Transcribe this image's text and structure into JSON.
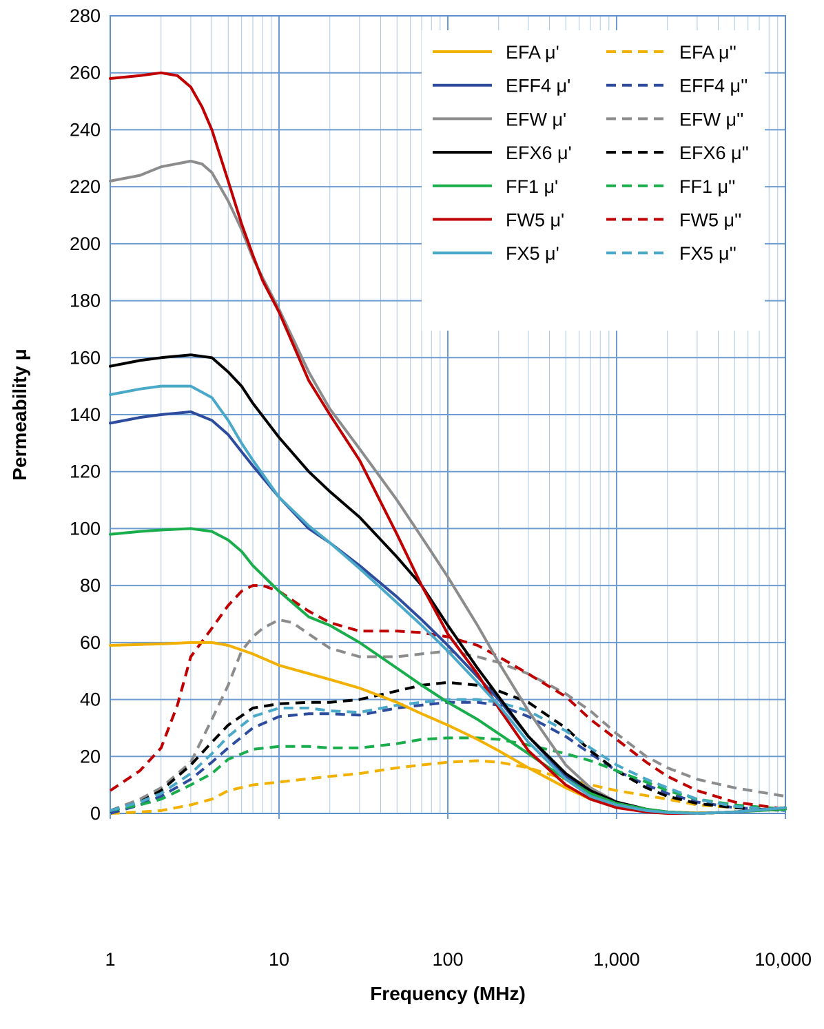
{
  "chart_data": {
    "type": "line",
    "title": "",
    "xlabel": "Frequency (MHz)",
    "ylabel": "Permeability  μ",
    "x_scale": "log",
    "xlim": [
      1,
      10000
    ],
    "ylim": [
      0,
      280
    ],
    "x_ticks": [
      1,
      10,
      100,
      1000,
      10000
    ],
    "x_tick_labels": [
      "1",
      "10",
      "100",
      "1,000",
      "10,000"
    ],
    "y_ticks": [
      0,
      20,
      40,
      60,
      80,
      100,
      120,
      140,
      160,
      180,
      200,
      220,
      240,
      260,
      280
    ],
    "y_tick_labels": [
      "0",
      "20",
      "40",
      "60",
      "80",
      "100",
      "120",
      "140",
      "160",
      "180",
      "200",
      "220",
      "240",
      "260",
      "280"
    ],
    "grid": true,
    "legend_position": "top-right",
    "series": [
      {
        "name": "EFA μ'",
        "color": "#f2b100",
        "style": "solid",
        "x": [
          1,
          2,
          3,
          4,
          5,
          7,
          10,
          20,
          30,
          50,
          70,
          100,
          150,
          200,
          300,
          500,
          700,
          1000,
          1500,
          2000,
          3000,
          4000,
          6000,
          10000
        ],
        "y": [
          59,
          59.5,
          60,
          60,
          59,
          56,
          52,
          47,
          44,
          39,
          35,
          31,
          26,
          22,
          16,
          9,
          5,
          3,
          1,
          0.5,
          0.2,
          0.3,
          0.8,
          1.5
        ]
      },
      {
        "name": "EFA μ''",
        "color": "#f2b100",
        "style": "dashed",
        "x": [
          1,
          1.5,
          2,
          3,
          4,
          5,
          7,
          10,
          20,
          30,
          50,
          70,
          100,
          150,
          200,
          300,
          500,
          1000,
          2000,
          3000,
          5000,
          10000
        ],
        "y": [
          0,
          0.5,
          1,
          3,
          5,
          8,
          10,
          11,
          13,
          14,
          16,
          17,
          18,
          18.5,
          18,
          16,
          12,
          8,
          5,
          3,
          2,
          1.5
        ]
      },
      {
        "name": "EFF4 μ'",
        "color": "#2e4c9e",
        "style": "solid",
        "x": [
          1,
          1.5,
          2,
          3,
          4,
          5,
          6,
          7,
          10,
          15,
          20,
          30,
          50,
          70,
          100,
          150,
          200,
          300,
          500,
          700,
          1000,
          1500,
          2000,
          3000,
          5000,
          10000
        ],
        "y": [
          137,
          139,
          140,
          141,
          138,
          133,
          127,
          122,
          111,
          100,
          95,
          87,
          76,
          68,
          59,
          48,
          40,
          27,
          13,
          7,
          3,
          1,
          0.3,
          0,
          0.5,
          2
        ]
      },
      {
        "name": "EFF4 μ''",
        "color": "#2e4c9e",
        "style": "dashed",
        "x": [
          1,
          1.5,
          2,
          3,
          4,
          5,
          7,
          10,
          15,
          20,
          30,
          50,
          70,
          100,
          150,
          200,
          300,
          500,
          700,
          1000,
          1500,
          2000,
          3000,
          5000,
          10000
        ],
        "y": [
          0,
          3,
          6,
          12,
          18,
          23,
          30,
          34,
          35,
          35,
          34.5,
          37,
          38,
          39,
          39,
          38,
          34,
          27,
          21,
          15,
          10,
          7,
          4,
          2,
          1
        ]
      },
      {
        "name": "EFW μ'",
        "color": "#8c8c8c",
        "style": "solid",
        "x": [
          1,
          1.5,
          2,
          3,
          3.5,
          4,
          5,
          6,
          7,
          8,
          10,
          15,
          20,
          30,
          50,
          70,
          100,
          150,
          200,
          300,
          500,
          700,
          1000,
          1500,
          2000,
          3000,
          5000,
          10000
        ],
        "y": [
          222,
          224,
          227,
          229,
          228,
          225,
          215,
          205,
          195,
          188,
          177,
          155,
          142,
          128,
          110,
          97,
          83,
          66,
          53,
          36,
          17,
          9,
          4,
          1.5,
          0.5,
          0,
          0.5,
          2
        ]
      },
      {
        "name": "EFW μ''",
        "color": "#8c8c8c",
        "style": "dashed",
        "x": [
          1,
          1.5,
          2,
          3,
          4,
          5,
          6,
          7,
          8,
          10,
          12,
          15,
          20,
          30,
          50,
          70,
          100,
          150,
          200,
          300,
          500,
          700,
          1000,
          1500,
          2000,
          3000,
          5000,
          10000
        ],
        "y": [
          1,
          5,
          9,
          18,
          33,
          45,
          57,
          62,
          65,
          68,
          67,
          63,
          58,
          55,
          55,
          56,
          57,
          55,
          53,
          49,
          42,
          36,
          28,
          20,
          16,
          12,
          9,
          6
        ]
      },
      {
        "name": "EFX6 μ'",
        "color": "#000000",
        "style": "solid",
        "x": [
          1,
          1.5,
          2,
          3,
          4,
          5,
          6,
          7,
          10,
          15,
          20,
          30,
          50,
          70,
          100,
          150,
          200,
          300,
          500,
          700,
          1000,
          1500,
          2000,
          3000,
          5000,
          10000
        ],
        "y": [
          157,
          159,
          160,
          161,
          160,
          155,
          150,
          144,
          132,
          120,
          113,
          104,
          90,
          80,
          66,
          51,
          41,
          27,
          14,
          8,
          4,
          1.5,
          0.5,
          0,
          0.5,
          2
        ]
      },
      {
        "name": "EFX6 μ''",
        "color": "#000000",
        "style": "dashed",
        "x": [
          1,
          1.5,
          2,
          3,
          4,
          5,
          7,
          10,
          15,
          20,
          30,
          50,
          70,
          100,
          150,
          200,
          300,
          500,
          700,
          1000,
          1500,
          2000,
          3000,
          5000,
          10000
        ],
        "y": [
          1,
          4,
          8,
          17,
          25,
          31,
          37,
          38.5,
          39,
          39,
          40,
          43,
          45,
          46,
          45,
          43,
          39,
          30,
          22,
          15,
          9,
          6,
          3.5,
          2,
          1
        ]
      },
      {
        "name": "FF1 μ'",
        "color": "#1aad4c",
        "style": "solid",
        "x": [
          1,
          1.5,
          2,
          3,
          4,
          5,
          6,
          7,
          10,
          15,
          20,
          30,
          50,
          70,
          100,
          150,
          200,
          300,
          500,
          700,
          1000,
          1500,
          2000,
          3000,
          5000,
          10000
        ],
        "y": [
          98,
          99,
          99.5,
          100,
          99,
          96,
          92,
          87,
          78,
          69,
          66,
          60,
          51,
          45,
          39,
          33,
          28,
          21,
          12,
          7,
          3.5,
          1.5,
          0.5,
          0,
          0.5,
          1.5
        ]
      },
      {
        "name": "FF1 μ''",
        "color": "#1aad4c",
        "style": "dashed",
        "x": [
          1,
          1.5,
          2,
          3,
          4,
          5,
          7,
          10,
          15,
          20,
          30,
          50,
          70,
          100,
          150,
          200,
          300,
          500,
          700,
          1000,
          1500,
          2000,
          3000,
          5000,
          10000
        ],
        "y": [
          1,
          3,
          5,
          10,
          14,
          19,
          22.5,
          23.5,
          23.5,
          23,
          23,
          24.5,
          26,
          26.5,
          26.5,
          26,
          24,
          21,
          18.5,
          15,
          11,
          8,
          5,
          3,
          1.5
        ]
      },
      {
        "name": "FW5 μ'",
        "color": "#c00000",
        "style": "solid",
        "x": [
          1,
          1.5,
          2,
          2.5,
          3,
          3.5,
          4,
          5,
          6,
          7,
          8,
          10,
          15,
          20,
          30,
          50,
          70,
          100,
          150,
          200,
          300,
          500,
          700,
          1000,
          1500,
          2000,
          3000,
          5000,
          10000
        ],
        "y": [
          258,
          259,
          260,
          259,
          255,
          248,
          240,
          222,
          207,
          196,
          187,
          176,
          152,
          140,
          124,
          98,
          80,
          63,
          49,
          37,
          22,
          10,
          5,
          2,
          0.5,
          0,
          0,
          0.5,
          2
        ]
      },
      {
        "name": "FW5 μ''",
        "color": "#c00000",
        "style": "dashed",
        "x": [
          1,
          1.5,
          2,
          2.5,
          3,
          4,
          5,
          6,
          7,
          8,
          10,
          15,
          20,
          30,
          50,
          70,
          100,
          150,
          200,
          300,
          500,
          700,
          1000,
          1500,
          2000,
          3000,
          5000,
          10000
        ],
        "y": [
          8,
          15,
          23,
          38,
          55,
          65,
          73,
          78,
          80,
          80,
          78,
          71,
          67,
          64,
          64,
          63.5,
          62,
          59,
          55,
          49,
          41,
          33,
          26,
          18,
          13,
          8,
          4,
          1.5
        ]
      },
      {
        "name": "FX5 μ'",
        "color": "#4aa8c8",
        "style": "solid",
        "x": [
          1,
          1.5,
          2,
          3,
          4,
          5,
          6,
          7,
          10,
          15,
          20,
          30,
          50,
          70,
          100,
          150,
          200,
          300,
          500,
          700,
          1000,
          1500,
          2000,
          3000,
          5000,
          10000
        ],
        "y": [
          147,
          149,
          150,
          150,
          146,
          138,
          130,
          124,
          111,
          101,
          95,
          86,
          74,
          66,
          57,
          46,
          38,
          25,
          12,
          6,
          3,
          1,
          0.3,
          0,
          0.5,
          2
        ]
      },
      {
        "name": "FX5 μ''",
        "color": "#4aa8c8",
        "style": "dashed",
        "x": [
          1,
          1.5,
          2,
          3,
          4,
          5,
          7,
          10,
          15,
          20,
          30,
          50,
          70,
          100,
          150,
          200,
          300,
          500,
          700,
          1000,
          1500,
          2000,
          3000,
          5000,
          10000
        ],
        "y": [
          1,
          4,
          7,
          14,
          21,
          27,
          34,
          37,
          37,
          36,
          35.5,
          38,
          39,
          40,
          40,
          39,
          36,
          29,
          23,
          17,
          12,
          9,
          5,
          2.5,
          1
        ]
      }
    ]
  }
}
